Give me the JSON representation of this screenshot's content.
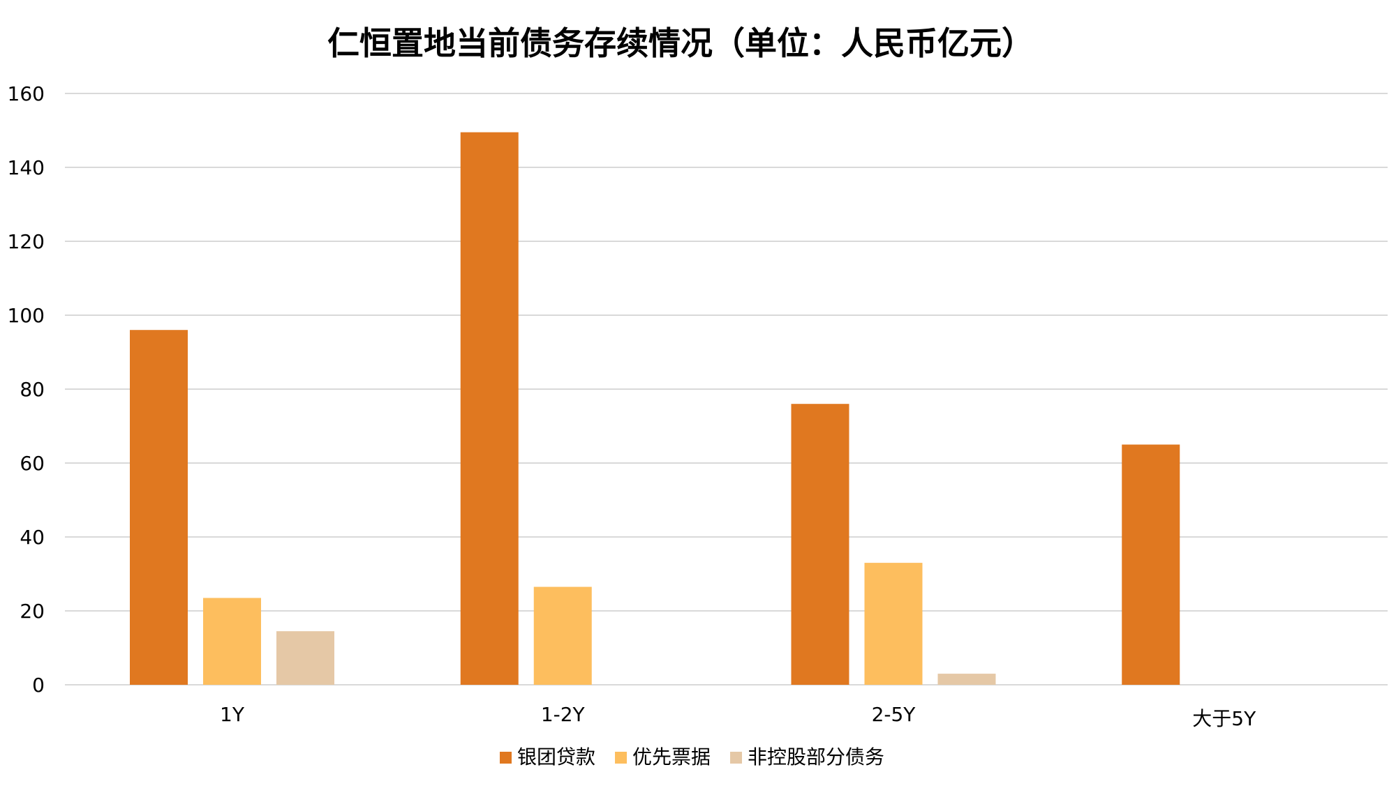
{
  "chart_data": {
    "type": "bar",
    "title": "仁恒置地当前债务存续情况（单位：人民币亿元）",
    "categories": [
      "1Y",
      "1-2Y",
      "2-5Y",
      "大于5Y"
    ],
    "series": [
      {
        "name": "银团贷款",
        "color": "#E07820",
        "values": [
          96,
          149.5,
          76,
          65
        ]
      },
      {
        "name": "优先票据",
        "color": "#FDBE5E",
        "values": [
          23.5,
          26.5,
          33,
          null
        ]
      },
      {
        "name": "非控股部分债务",
        "color": "#E5C8A6",
        "values": [
          14.5,
          null,
          3,
          null
        ]
      }
    ],
    "ylim": [
      0,
      160
    ],
    "yticks": [
      0,
      20,
      40,
      60,
      80,
      100,
      120,
      140,
      160
    ],
    "grid": true,
    "legend_position": "bottom-center",
    "colors": {
      "gridline": "#D9D9D9",
      "axis_text": "#000000"
    }
  }
}
